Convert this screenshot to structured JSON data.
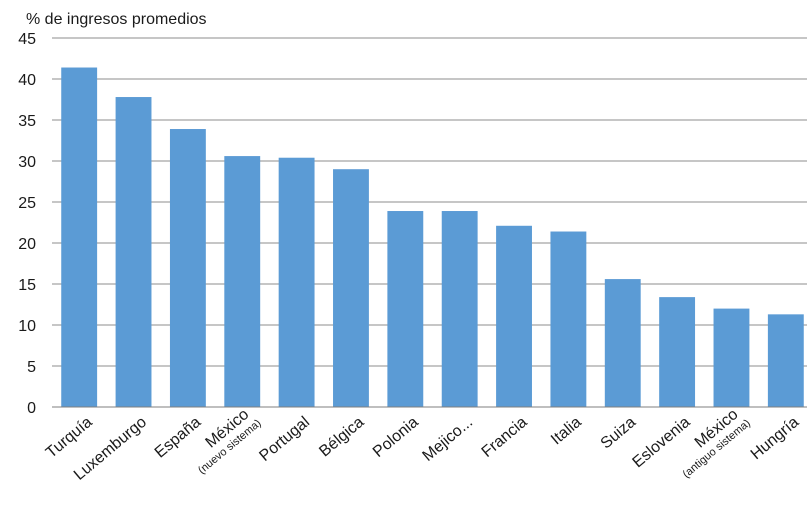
{
  "chart_data": {
    "type": "bar",
    "ylabel": "% de ingresos promedios",
    "ylim": [
      0,
      45
    ],
    "yticks": [
      "0",
      "5",
      "10",
      "15",
      "20",
      "25",
      "30",
      "35",
      "40",
      "45"
    ],
    "grid": true,
    "categories": [
      {
        "label": "Turquía",
        "sublabel": ""
      },
      {
        "label": "Luxemburgo",
        "sublabel": ""
      },
      {
        "label": "España",
        "sublabel": ""
      },
      {
        "label": "México",
        "sublabel": "(nuevo sistema)"
      },
      {
        "label": "Portugal",
        "sublabel": ""
      },
      {
        "label": "Bélgica",
        "sublabel": ""
      },
      {
        "label": "Polonia",
        "sublabel": ""
      },
      {
        "label": "Mejico...",
        "sublabel": ""
      },
      {
        "label": "Francia",
        "sublabel": ""
      },
      {
        "label": "Italia",
        "sublabel": ""
      },
      {
        "label": "Suiza",
        "sublabel": ""
      },
      {
        "label": "Eslovenia",
        "sublabel": ""
      },
      {
        "label": "México",
        "sublabel": "(antiguo sistema)"
      },
      {
        "label": "Hungría",
        "sublabel": ""
      }
    ],
    "values": [
      41.4,
      37.8,
      33.9,
      30.6,
      30.4,
      29.0,
      23.9,
      23.9,
      22.1,
      21.4,
      15.6,
      13.4,
      12.0,
      11.3
    ],
    "bar_color": "#5b9bd5",
    "grid_color": "#8c8c8c"
  }
}
